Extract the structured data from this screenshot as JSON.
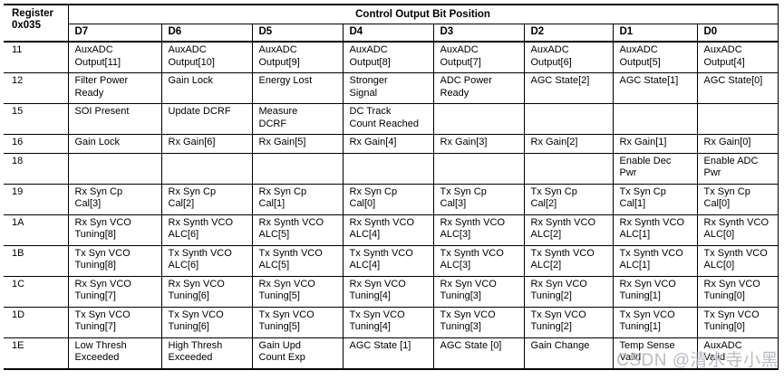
{
  "page": {
    "watermark": "CSDN @清水寺小黑"
  },
  "colors": {
    "text": "#000000",
    "border": "#000000",
    "watermark": "#b9bcc1"
  },
  "table": {
    "register_header": "Register\n0x035",
    "title": "Control Output Bit Position",
    "bit_headers": [
      "D7",
      "D6",
      "D5",
      "D4",
      "D3",
      "D2",
      "D1",
      "D0"
    ],
    "rows": [
      {
        "register": "11",
        "cells": [
          "AuxADC\nOutput[11]",
          "AuxADC\nOutput[10]",
          "AuxADC\nOutput[9]",
          "AuxADC\nOutput[8]",
          "AuxADC\nOutput[7]",
          "AuxADC\nOutput[6]",
          "AuxADC\nOutput[5]",
          "AuxADC\nOutput[4]"
        ]
      },
      {
        "register": "12",
        "cells": [
          "Filter Power\nReady",
          "Gain Lock",
          "Energy Lost",
          "Stronger\nSignal",
          "ADC Power\nReady",
          "AGC State[2]",
          "AGC State[1]",
          "AGC State[0]"
        ]
      },
      {
        "register": "15",
        "cells": [
          "SOI Present",
          "Update DCRF",
          "Measure\nDCRF",
          "DC Track\nCount Reached",
          "",
          "",
          "",
          ""
        ]
      },
      {
        "register": "16",
        "cells": [
          "Gain Lock",
          "Rx Gain[6]",
          "Rx Gain[5]",
          "Rx Gain[4]",
          "Rx Gain[3]",
          "Rx Gain[2]",
          "Rx Gain[1]",
          "Rx Gain[0]"
        ]
      },
      {
        "register": "18",
        "cells": [
          "",
          "",
          "",
          "",
          "",
          "",
          "Enable Dec\nPwr",
          "Enable ADC\nPwr"
        ]
      },
      {
        "register": "19",
        "cells": [
          "Rx Syn Cp\nCal[3]",
          "Rx Syn Cp\nCal[2]",
          "Rx Syn Cp\nCal[1]",
          "Rx Syn Cp\nCal[0]",
          "Tx Syn Cp\nCal[3]",
          "Tx Syn Cp\nCal[2]",
          "Tx Syn Cp\nCal[1]",
          "Tx Syn Cp\nCal[0]"
        ]
      },
      {
        "register": "1A",
        "cells": [
          "Rx Syn VCO\nTuning[8]",
          "Rx Synth VCO\nALC[6]",
          "Rx Synth VCO\nALC[5]",
          "Rx Synth VCO\nALC[4]",
          "Rx Synth VCO\nALC[3]",
          "Rx Synth VCO\nALC[2]",
          "Rx Synth VCO\nALC[1]",
          "Rx Synth VCO\nALC[0]"
        ]
      },
      {
        "register": "1B",
        "cells": [
          "Tx Syn VCO\nTuning[8]",
          "Tx Synth VCO\nALC[6]",
          "Tx Synth VCO\nALC[5]",
          "Tx Synth VCO\nALC[4]",
          "Tx Synth VCO\nALC[3]",
          "Tx Synth VCO\nALC[2]",
          "Tx Synth VCO\nALC[1]",
          "Tx Synth VCO\nALC[0]"
        ]
      },
      {
        "register": "1C",
        "cells": [
          "Rx Syn VCO\nTuning[7]",
          "Rx Syn VCO\nTuning[6]",
          "Rx Syn VCO\nTuning[5]",
          "Rx Syn VCO\nTuning[4]",
          "Rx Syn VCO\nTuning[3]",
          "Rx Syn VCO\nTuning[2]",
          "Rx Syn VCO\nTuning[1]",
          "Rx Syn VCO\nTuning[0]"
        ]
      },
      {
        "register": "1D",
        "cells": [
          "Tx Syn VCO\nTuning[7]",
          "Tx Syn VCO\nTuning[6]",
          "Tx Syn VCO\nTuning[5]",
          "Tx Syn VCO\nTuning[4]",
          "Tx Syn VCO\nTuning[3]",
          "Tx Syn VCO\nTuning[2]",
          "Tx Syn VCO\nTuning[1]",
          "Tx Syn VCO\nTuning[0]"
        ]
      },
      {
        "register": "1E",
        "cells": [
          "Low Thresh\nExceeded",
          "High Thresh\nExceeded",
          "Gain Upd\nCount Exp",
          "AGC State [1]",
          "AGC State [0]",
          "Gain Change",
          "Temp Sense\nValid",
          "AuxADC\nValid"
        ]
      }
    ]
  }
}
